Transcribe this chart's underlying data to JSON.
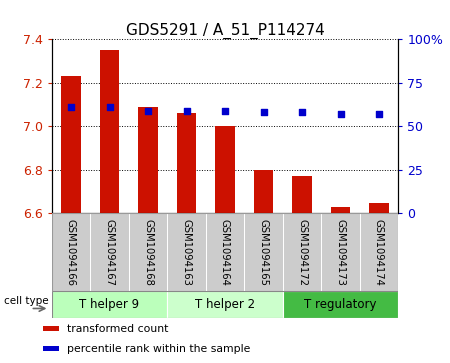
{
  "title": "GDS5291 / A_51_P114274",
  "samples": [
    "GSM1094166",
    "GSM1094167",
    "GSM1094168",
    "GSM1094163",
    "GSM1094164",
    "GSM1094165",
    "GSM1094172",
    "GSM1094173",
    "GSM1094174"
  ],
  "transformed_count": [
    7.23,
    7.35,
    7.09,
    7.06,
    7.0,
    6.8,
    6.77,
    6.63,
    6.65
  ],
  "percentile_rank": [
    61,
    61,
    59,
    59,
    59,
    58,
    58,
    57,
    57
  ],
  "ylim_left": [
    6.6,
    7.4
  ],
  "ylim_right": [
    0,
    100
  ],
  "yticks_left": [
    6.6,
    6.8,
    7.0,
    7.2,
    7.4
  ],
  "yticks_right": [
    0,
    25,
    50,
    75,
    100
  ],
  "bar_color": "#cc1100",
  "dot_color": "#0000cc",
  "bar_width": 0.5,
  "cell_types": [
    {
      "label": "T helper 9",
      "start": 0,
      "end": 3,
      "color": "#bbffbb"
    },
    {
      "label": "T helper 2",
      "start": 3,
      "end": 6,
      "color": "#ccffcc"
    },
    {
      "label": "T regulatory",
      "start": 6,
      "end": 9,
      "color": "#44bb44"
    }
  ],
  "legend_items": [
    {
      "label": "transformed count",
      "color": "#cc1100"
    },
    {
      "label": "percentile rank within the sample",
      "color": "#0000cc"
    }
  ],
  "tick_label_color_left": "#cc2200",
  "tick_label_color_right": "#0000cc",
  "tick_fontsize": 9,
  "title_fontsize": 11,
  "sample_bg_color": "#cccccc",
  "cell_type_label": "cell type"
}
